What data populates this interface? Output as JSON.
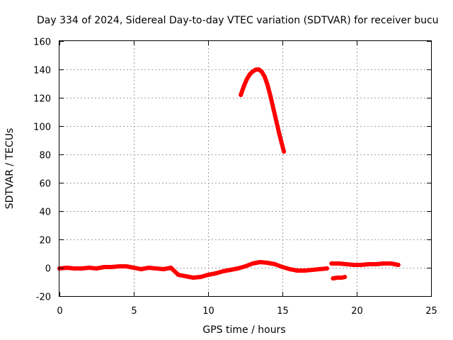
{
  "chart_data": {
    "type": "line",
    "title": "Day 334 of 2024, Sidereal Day-to-day VTEC variation (SDTVAR) for receiver bucu",
    "xlabel": "GPS time / hours",
    "ylabel": "SDTVAR / TECUs",
    "xlim": [
      0,
      25
    ],
    "ylim": [
      -20,
      160
    ],
    "xticks": [
      "0",
      "5",
      "10",
      "15",
      "20",
      "25"
    ],
    "yticks": [
      "-20",
      "0",
      "20",
      "40",
      "60",
      "80",
      "100",
      "120",
      "140",
      "160"
    ],
    "grid": true,
    "color": "#ff0000",
    "series": [
      {
        "name": "arc-main",
        "x": [
          0.0,
          0.5,
          1.0,
          1.5,
          2.0,
          2.5,
          3.0,
          3.5,
          4.0,
          4.5,
          5.0,
          5.5,
          6.0,
          6.5,
          7.0,
          7.5,
          8.0,
          8.5,
          9.0,
          9.5,
          10.0,
          10.5,
          11.0,
          11.5,
          12.0,
          12.5,
          13.0,
          13.5,
          14.0,
          14.5,
          15.0,
          15.5,
          16.0,
          16.5,
          17.0,
          17.5,
          18.0
        ],
        "y": [
          -0.5,
          0.0,
          -0.5,
          -0.5,
          0.0,
          -0.5,
          0.5,
          0.5,
          1.0,
          1.0,
          0.0,
          -1.0,
          0.0,
          -0.5,
          -1.0,
          0.0,
          -5.0,
          -6.0,
          -7.0,
          -6.5,
          -5.0,
          -4.0,
          -2.5,
          -1.5,
          -0.5,
          1.0,
          3.0,
          4.0,
          3.5,
          2.5,
          0.5,
          -1.0,
          -2.0,
          -2.0,
          -1.5,
          -1.0,
          -0.5
        ]
      },
      {
        "name": "arc-late",
        "x": [
          18.3,
          18.8,
          19.3,
          19.8,
          20.3,
          20.8,
          21.3,
          21.8,
          22.3,
          22.8
        ],
        "y": [
          3.0,
          3.0,
          2.5,
          2.0,
          2.0,
          2.5,
          2.5,
          3.0,
          3.0,
          2.0
        ]
      },
      {
        "name": "arc-short",
        "x": [
          18.4,
          18.7,
          19.0,
          19.2
        ],
        "y": [
          -7.5,
          -7.0,
          -7.0,
          -6.5
        ]
      },
      {
        "name": "arc-spike",
        "x": [
          12.2,
          12.4,
          12.6,
          12.8,
          13.0,
          13.2,
          13.4,
          13.6,
          13.8,
          14.0,
          14.2,
          14.4,
          14.6,
          14.8,
          15.0,
          15.1
        ],
        "y": [
          122,
          128,
          133,
          136.5,
          138.5,
          139.8,
          140,
          138.5,
          135,
          129,
          121,
          112,
          103,
          94,
          86,
          82
        ]
      }
    ]
  }
}
